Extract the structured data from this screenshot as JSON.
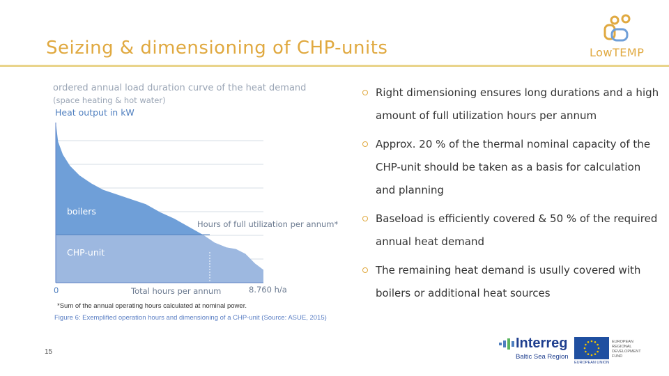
{
  "slide": {
    "title": "Seizing & dimensioning of CHP-units",
    "page_number": "15"
  },
  "logo": {
    "brand_text": "LowTEMP",
    "color": "#e0a940"
  },
  "chart": {
    "title": "ordered annual load duration curve of the heat demand",
    "subtitle": "(space heating & hot water)",
    "y_label": "Heat output in kW",
    "x_label": "Total hours per annum",
    "x_start": "0",
    "x_end": "8.760 h/a",
    "region_boilers": "boilers",
    "region_chp": "CHP-unit",
    "annotation": "Hours of full utilization per annum*",
    "colors": {
      "upper": "#6f9fd8",
      "lower": "#9db8e0",
      "grid": "#c7d0dc"
    }
  },
  "chart_data": {
    "type": "area",
    "title": "ordered annual load duration curve of the heat demand",
    "ylabel": "Heat output in kW",
    "xlabel": "Total hours per annum",
    "x_range": [
      0,
      8760
    ],
    "x": [
      0,
      100,
      300,
      600,
      1000,
      1500,
      2000,
      2600,
      3200,
      3800,
      4400,
      5000,
      5600,
      6200,
      6700,
      7200,
      7600,
      8000,
      8400,
      8760
    ],
    "y": [
      100,
      88,
      80,
      73,
      67,
      62,
      58,
      55,
      52,
      49,
      44,
      40,
      35,
      30,
      25,
      22,
      21,
      18,
      12,
      8
    ],
    "chp_level": 30,
    "grid": true
  },
  "footnote": "*Sum of the annual operating hours calculated at nominal power.",
  "caption": "Figure 6: Exemplified operation hours and dimensioning of a CHP-unit (Source: ASUE, 2015)",
  "bullets": [
    "Right dimensioning ensures long durations and a high amount of full utilization hours per annum",
    "Approx. 20 % of the thermal nominal capacity of the CHP-unit should be taken as a basis for calculation and planning",
    "Baseload is efficiently covered & 50 % of the required annual heat demand",
    "The remaining heat demand is usully covered with boilers or additional heat sources"
  ],
  "interreg": {
    "name": "Interreg",
    "region": "Baltic Sea Region",
    "eu_label": "EUROPEAN UNION",
    "fund_label": "EUROPEAN REGIONAL DEVELOPMENT FUND"
  }
}
